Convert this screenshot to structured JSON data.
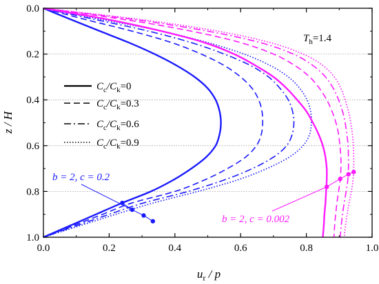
{
  "chart_data": {
    "type": "line",
    "xlabel_main": "u",
    "xlabel_sub": "r",
    "xlabel_tail": " / p",
    "ylabel": "z / H",
    "xlim": [
      0.0,
      1.0
    ],
    "ylim": [
      0.0,
      1.0
    ],
    "y_inverted": true,
    "x_ticks": [
      "0.0",
      "0.2",
      "0.4",
      "0.6",
      "0.8",
      "1.0"
    ],
    "y_ticks": [
      "0.0",
      "0.2",
      "0.4",
      "0.6",
      "0.8",
      "1.0"
    ],
    "grid": "horizontal dotted",
    "th_label": {
      "main": "T",
      "sub": "h",
      "value": "=1.4"
    },
    "legend": {
      "placement": "left-middle",
      "entries": [
        {
          "main": "C",
          "sub1": "c",
          "mid": "/C",
          "sub2": "k",
          "value": "=0",
          "style": "solid"
        },
        {
          "main": "C",
          "sub1": "c",
          "mid": "/C",
          "sub2": "k",
          "value": "=0.3",
          "style": "dashed"
        },
        {
          "main": "C",
          "sub1": "c",
          "mid": "/C",
          "sub2": "k",
          "value": "=0.6",
          "style": "dashdot"
        },
        {
          "main": "C",
          "sub1": "c",
          "mid": "/C",
          "sub2": "k",
          "value": "=0.9",
          "style": "dotted"
        }
      ]
    },
    "annotations": [
      {
        "text": "b = 2, c = 0.2",
        "color": "#1a1aff",
        "anchor": "upper-left"
      },
      {
        "text": "b = 2, c = 0.002",
        "color": "#ff19ff",
        "anchor": "lower-right"
      }
    ],
    "colors": {
      "blue": "#1a1aff",
      "magenta": "#ff19ff"
    },
    "series": [
      {
        "group": "b = 2, c = 0.2",
        "ratio": 0,
        "style": "solid",
        "color": "#1a1aff",
        "y": [
          0,
          0.05,
          0.1,
          0.15,
          0.2,
          0.25,
          0.3,
          0.35,
          0.4,
          0.45,
          0.5,
          0.55,
          0.6,
          0.65,
          0.7,
          0.75,
          0.8,
          0.85,
          0.9,
          0.95,
          1.0
        ],
        "x": [
          0,
          0.085,
          0.172,
          0.26,
          0.338,
          0.405,
          0.46,
          0.5,
          0.524,
          0.536,
          0.54,
          0.536,
          0.524,
          0.495,
          0.45,
          0.395,
          0.327,
          0.24,
          0.16,
          0.08,
          0
        ]
      },
      {
        "group": "b = 2, c = 0.2",
        "ratio": 0.3,
        "style": "dashed",
        "color": "#1a1aff",
        "y": [
          0,
          0.05,
          0.1,
          0.15,
          0.2,
          0.25,
          0.3,
          0.35,
          0.4,
          0.45,
          0.5,
          0.55,
          0.6,
          0.65,
          0.7,
          0.75,
          0.8,
          0.85,
          0.9,
          0.95,
          1.0
        ],
        "x": [
          0,
          0.13,
          0.27,
          0.39,
          0.48,
          0.55,
          0.6,
          0.635,
          0.655,
          0.665,
          0.667,
          0.663,
          0.648,
          0.615,
          0.56,
          0.49,
          0.4,
          0.27,
          0.18,
          0.09,
          0
        ]
      },
      {
        "group": "b = 2, c = 0.2",
        "ratio": 0.6,
        "style": "dashdot",
        "color": "#1a1aff",
        "y": [
          0,
          0.05,
          0.1,
          0.15,
          0.2,
          0.25,
          0.3,
          0.35,
          0.4,
          0.45,
          0.5,
          0.55,
          0.6,
          0.65,
          0.7,
          0.75,
          0.8,
          0.85,
          0.9,
          0.95,
          1.0
        ],
        "x": [
          0,
          0.16,
          0.32,
          0.45,
          0.55,
          0.63,
          0.685,
          0.72,
          0.745,
          0.758,
          0.762,
          0.757,
          0.74,
          0.7,
          0.636,
          0.55,
          0.44,
          0.305,
          0.2,
          0.1,
          0
        ]
      },
      {
        "group": "b = 2, c = 0.2",
        "ratio": 0.9,
        "style": "dotted",
        "color": "#1a1aff",
        "y": [
          0,
          0.05,
          0.1,
          0.15,
          0.2,
          0.25,
          0.3,
          0.35,
          0.4,
          0.45,
          0.5,
          0.55,
          0.6,
          0.65,
          0.7,
          0.75,
          0.8,
          0.85,
          0.9,
          0.95,
          1.0
        ],
        "x": [
          0,
          0.18,
          0.36,
          0.5,
          0.61,
          0.69,
          0.745,
          0.78,
          0.802,
          0.813,
          0.815,
          0.81,
          0.79,
          0.748,
          0.68,
          0.59,
          0.47,
          0.335,
          0.22,
          0.11,
          0
        ]
      },
      {
        "group": "b = 2, c = 0.002",
        "ratio": 0,
        "style": "solid",
        "color": "#ff19ff",
        "y": [
          0,
          0.05,
          0.1,
          0.15,
          0.2,
          0.25,
          0.3,
          0.35,
          0.4,
          0.45,
          0.5,
          0.55,
          0.6,
          0.65,
          0.7,
          0.75,
          0.8,
          0.85,
          0.9,
          0.95,
          1.0
        ],
        "x": [
          0,
          0.2,
          0.36,
          0.49,
          0.58,
          0.645,
          0.7,
          0.74,
          0.772,
          0.8,
          0.82,
          0.837,
          0.85,
          0.858,
          0.862,
          0.862,
          0.86,
          0.858,
          0.855,
          0.853,
          0.85
        ]
      },
      {
        "group": "b = 2, c = 0.002",
        "ratio": 0.3,
        "style": "dashed",
        "color": "#ff19ff",
        "y": [
          0,
          0.05,
          0.1,
          0.15,
          0.2,
          0.25,
          0.3,
          0.35,
          0.4,
          0.45,
          0.5,
          0.55,
          0.6,
          0.65,
          0.7,
          0.75,
          0.8,
          0.85,
          0.9,
          0.95,
          1.0
        ],
        "x": [
          0,
          0.25,
          0.45,
          0.6,
          0.7,
          0.765,
          0.81,
          0.84,
          0.862,
          0.878,
          0.89,
          0.898,
          0.902,
          0.905,
          0.905,
          0.903,
          0.898,
          0.893,
          0.889,
          0.886,
          0.884
        ]
      },
      {
        "group": "b = 2, c = 0.002",
        "ratio": 0.6,
        "style": "dashdot",
        "color": "#ff19ff",
        "y": [
          0,
          0.05,
          0.1,
          0.15,
          0.2,
          0.25,
          0.3,
          0.35,
          0.4,
          0.45,
          0.5,
          0.55,
          0.6,
          0.65,
          0.7,
          0.75,
          0.8,
          0.85,
          0.9,
          0.95,
          1.0
        ],
        "x": [
          0,
          0.28,
          0.5,
          0.66,
          0.76,
          0.82,
          0.858,
          0.882,
          0.898,
          0.91,
          0.918,
          0.923,
          0.927,
          0.928,
          0.928,
          0.926,
          0.921,
          0.915,
          0.91,
          0.906,
          0.903
        ]
      },
      {
        "group": "b = 2, c = 0.002",
        "ratio": 0.9,
        "style": "dotted",
        "color": "#ff19ff",
        "y": [
          0,
          0.05,
          0.1,
          0.15,
          0.2,
          0.25,
          0.3,
          0.35,
          0.4,
          0.45,
          0.5,
          0.55,
          0.6,
          0.65,
          0.7,
          0.75,
          0.8,
          0.85,
          0.9,
          0.95,
          1.0
        ],
        "x": [
          0,
          0.3,
          0.53,
          0.69,
          0.79,
          0.85,
          0.885,
          0.905,
          0.918,
          0.928,
          0.935,
          0.94,
          0.943,
          0.944,
          0.944,
          0.942,
          0.937,
          0.93,
          0.924,
          0.919,
          0.915
        ]
      }
    ],
    "markers": [
      {
        "group": "b = 2, c = 0.2",
        "color": "#1a1aff",
        "points": [
          {
            "x": 0.24,
            "y": 0.85
          },
          {
            "x": 0.27,
            "y": 0.88
          },
          {
            "x": 0.305,
            "y": 0.905
          },
          {
            "x": 0.333,
            "y": 0.93
          }
        ]
      },
      {
        "group": "b = 2, c = 0.002",
        "color": "#ff19ff",
        "points": [
          {
            "x": 0.862,
            "y": 0.78
          },
          {
            "x": 0.903,
            "y": 0.745
          },
          {
            "x": 0.928,
            "y": 0.725
          },
          {
            "x": 0.944,
            "y": 0.715
          }
        ]
      }
    ]
  }
}
